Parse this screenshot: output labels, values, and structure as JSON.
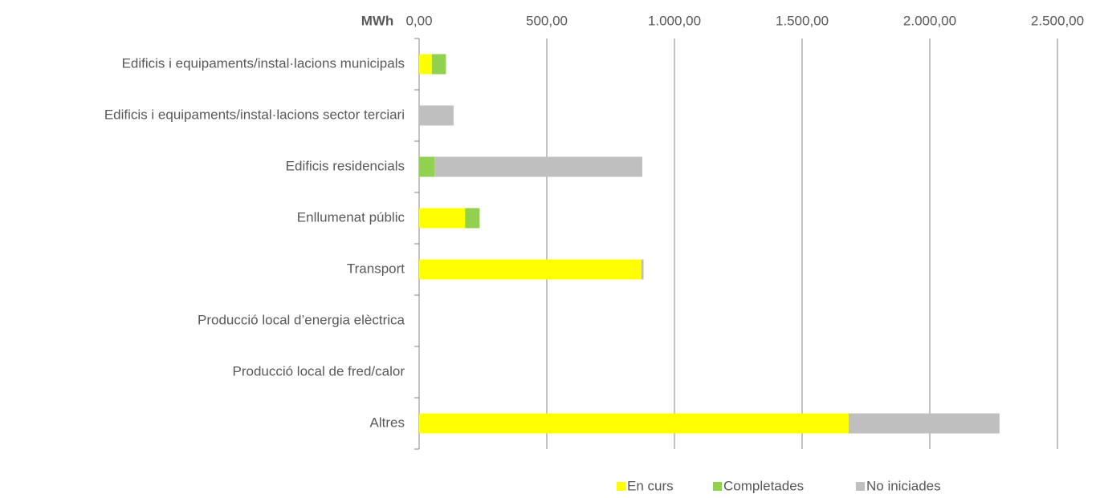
{
  "chart_data": {
    "type": "stacked-bar-horizontal",
    "axis_label": "MWh",
    "categories": [
      "Edificis i equipaments/instal·lacions municipals",
      "Edificis i equipaments/instal·lacions sector terciari",
      "Edificis residencials",
      "Enllumenat públic",
      "Transport",
      "Producció local d’energia elèctrica",
      "Producció local de fred/calor",
      "Altres"
    ],
    "series": [
      {
        "name": "En curs",
        "color": "#ffff00",
        "values": [
          50,
          0,
          0,
          180,
          870,
          0,
          0,
          1682
        ]
      },
      {
        "name": "Completades",
        "color": "#92d050",
        "values": [
          55,
          0,
          60,
          57,
          0,
          0,
          0,
          0
        ]
      },
      {
        "name": "No iniciades",
        "color": "#bfbfbf",
        "values": [
          0,
          135,
          814,
          0,
          9,
          0,
          0,
          591
        ]
      }
    ],
    "xlim": [
      0,
      2500
    ],
    "xticks": [
      {
        "value": 0,
        "label": "0,00"
      },
      {
        "value": 500,
        "label": "500,00"
      },
      {
        "value": 1000,
        "label": "1.000,00"
      },
      {
        "value": 1500,
        "label": "1.500,00"
      },
      {
        "value": 2000,
        "label": "2.000,00"
      },
      {
        "value": 2500,
        "label": "2.500,00"
      }
    ],
    "grid": true,
    "legend": "bottom"
  }
}
